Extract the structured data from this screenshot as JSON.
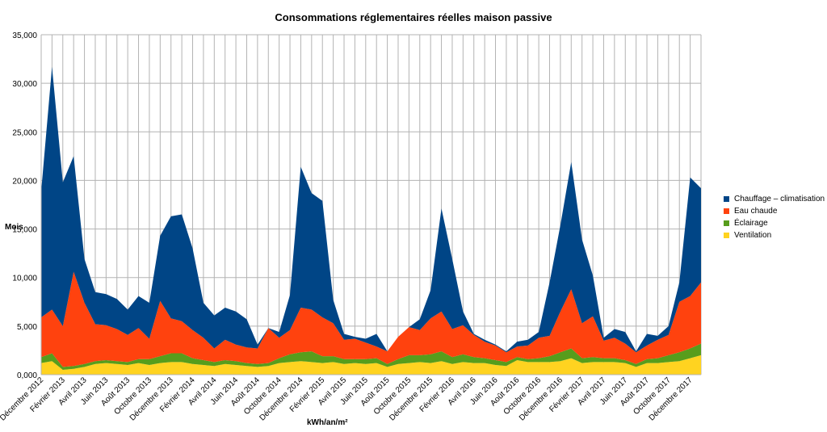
{
  "chart_data": {
    "type": "area",
    "stacked": true,
    "title": "Consommations réglementaires réelles maison passive",
    "xlabel": "kWh/an/m²",
    "ylabel": "Mois",
    "ylim": [
      0,
      35000
    ],
    "yticks": [
      0,
      5000,
      10000,
      15000,
      20000,
      25000,
      30000,
      35000
    ],
    "ytick_labels": [
      "0,000",
      "5,000",
      "10,000",
      "15,000",
      "20,000",
      "25,000",
      "30,000",
      "35,000"
    ],
    "grid": true,
    "legend_position": "right",
    "x": [
      "Décembre 2012",
      "Janvier 2013",
      "Février 2013",
      "Mars 2013",
      "Avril 2013",
      "Mai 2013",
      "Juin 2013",
      "Juillet 2013",
      "Août 2013",
      "Septembre 2013",
      "Octobre 2013",
      "Novembre 2013",
      "Décembre 2013",
      "Janvier 2014",
      "Février 2014",
      "Mars 2014",
      "Avril 2014",
      "Mai 2014",
      "Juin 2014",
      "Juillet 2014",
      "Août 2014",
      "Septembre 2014",
      "Octobre 2014",
      "Novembre 2014",
      "Décembre 2014",
      "Janvier 2015",
      "Février 2015",
      "Mars 2015",
      "Avril 2015",
      "Mai 2015",
      "Juin 2015",
      "Juillet 2015",
      "Août 2015",
      "Septembre 2015",
      "Octobre 2015",
      "Novembre 2015",
      "Décembre 2015",
      "Janvier 2016",
      "Février 2016",
      "Mars 2016",
      "Avril 2016",
      "Mai 2016",
      "Juin 2016",
      "Juillet 2016",
      "Août 2016",
      "Septembre 2016",
      "Octobre 2016",
      "Novembre 2016",
      "Décembre 2016",
      "Janvier 2017",
      "Février 2017",
      "Mars 2017",
      "Avril 2017",
      "Mai 2017",
      "Juin 2017",
      "Juillet 2017",
      "Août 2017",
      "Septembre 2017",
      "Octobre 2017",
      "Novembre 2017",
      "Décembre 2017",
      "Janvier 2018"
    ],
    "x_tick_labels": [
      "Décembre 2012",
      "Février 2013",
      "Avril 2013",
      "Juin 2013",
      "Août 2013",
      "Octobre 2013",
      "Décembre 2013",
      "Février 2014",
      "Avril 2014",
      "Juin 2014",
      "Août 2014",
      "Octobre 2014",
      "Décembre 2014",
      "Février 2015",
      "Avril 2015",
      "Juin 2015",
      "Août 2015",
      "Octobre 2015",
      "Décembre 2015",
      "Février 2016",
      "Avril 2016",
      "Juin 2016",
      "Août 2016",
      "Octobre 2016",
      "Décembre 2016",
      "Février 2017",
      "Avril 2017",
      "Juin 2017",
      "Août 2017",
      "Octobre 2017",
      "Décembre 2017"
    ],
    "series": [
      {
        "name": "Ventilation",
        "color": "#ffd320",
        "values": [
          1200,
          1400,
          500,
          600,
          800,
          1100,
          1200,
          1100,
          1000,
          1200,
          1000,
          1200,
          1300,
          1300,
          1100,
          1000,
          900,
          1100,
          1000,
          900,
          800,
          900,
          1200,
          1300,
          1400,
          1300,
          1200,
          1300,
          1100,
          1200,
          1100,
          1200,
          800,
          1100,
          1200,
          1300,
          1200,
          1400,
          1100,
          1300,
          1200,
          1200,
          1000,
          900,
          1500,
          1300,
          1300,
          1300,
          1400,
          1700,
          1200,
          1300,
          1300,
          1300,
          1200,
          800,
          1200,
          1200,
          1300,
          1400,
          1700,
          2000
        ]
      },
      {
        "name": "Éclairage",
        "color": "#579d1c",
        "values": [
          600,
          800,
          300,
          300,
          300,
          300,
          300,
          300,
          300,
          400,
          600,
          700,
          900,
          900,
          600,
          500,
          400,
          400,
          400,
          300,
          300,
          300,
          500,
          800,
          900,
          1100,
          700,
          600,
          500,
          400,
          500,
          500,
          300,
          500,
          800,
          700,
          900,
          1000,
          700,
          800,
          600,
          500,
          500,
          400,
          300,
          300,
          400,
          600,
          900,
          1000,
          500,
          500,
          400,
          400,
          300,
          300,
          400,
          500,
          700,
          900,
          1000,
          1200
        ]
      },
      {
        "name": "Eau chaude",
        "color": "#ff420e",
        "values": [
          4100,
          4500,
          4200,
          9700,
          6300,
          3800,
          3600,
          3300,
          2800,
          3200,
          2100,
          5700,
          3600,
          3300,
          2900,
          2300,
          1400,
          2100,
          1700,
          1600,
          1600,
          3600,
          2100,
          2500,
          4600,
          4300,
          4000,
          3400,
          2000,
          2100,
          1700,
          1200,
          1300,
          2300,
          2900,
          2600,
          3700,
          4100,
          2900,
          3000,
          2300,
          1700,
          1500,
          1000,
          1100,
          1400,
          2100,
          2100,
          4200,
          6100,
          3600,
          4200,
          1800,
          2100,
          1700,
          1200,
          1400,
          1900,
          2100,
          5200,
          5400,
          6300
        ]
      },
      {
        "name": "Chauffage – climatisation",
        "color": "#004586",
        "values": [
          13000,
          25000,
          14800,
          11900,
          4500,
          3300,
          3200,
          3100,
          2600,
          3300,
          3700,
          6700,
          10500,
          11000,
          8400,
          3600,
          3400,
          3300,
          3400,
          2900,
          400,
          0,
          600,
          3600,
          14500,
          12000,
          12000,
          2400,
          600,
          200,
          400,
          1300,
          0,
          0,
          0,
          1100,
          2900,
          10600,
          7200,
          1400,
          100,
          200,
          100,
          100,
          500,
          600,
          600,
          5500,
          8900,
          13100,
          8600,
          4200,
          300,
          900,
          1200,
          100,
          1200,
          400,
          900,
          2000,
          12200,
          9700
        ]
      }
    ]
  }
}
